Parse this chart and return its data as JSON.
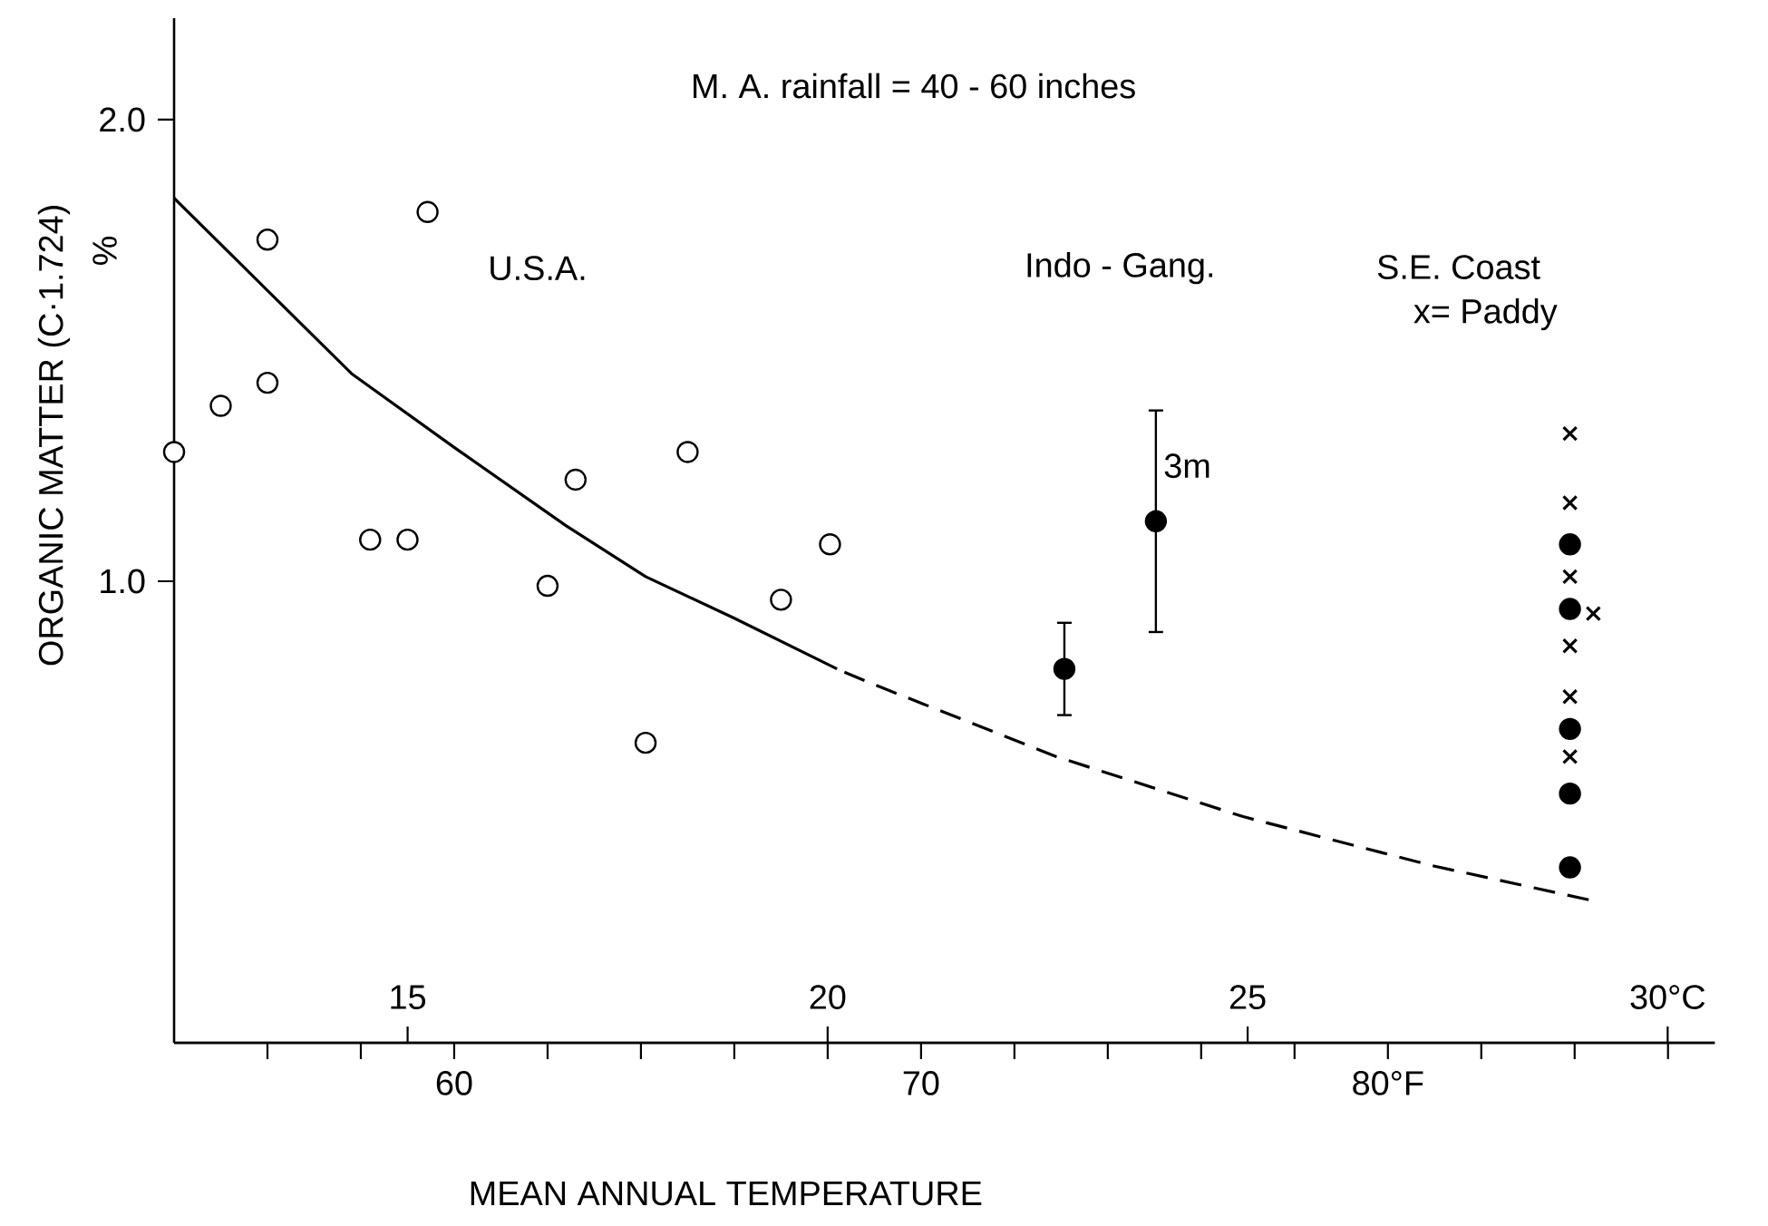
{
  "chart_data": {
    "type": "scatter",
    "xlabel": "MEAN ANNUAL TEMPERATURE",
    "ylabel": "ORGANIC MATTER (C·1.724)",
    "annotations": [
      "M. A. rainfall = 40 - 60 inches",
      "U.S.A.",
      "Indo - Gang.",
      "S.E. Coast",
      "x= Paddy",
      "%",
      {
        "text": "3m",
        "x": 75.03,
        "y": 1.25
      }
    ],
    "xlim": [
      54,
      87
    ],
    "xticks": [
      {
        "value": 56,
        "label": null
      },
      {
        "value": 58,
        "label": null
      },
      60,
      {
        "value": 62,
        "label": null
      },
      {
        "value": 64,
        "label": null
      },
      {
        "value": 66,
        "label": null
      },
      {
        "value": 68,
        "label": null
      },
      70,
      {
        "value": 72,
        "label": null
      },
      {
        "value": 74,
        "label": null
      },
      {
        "value": 76,
        "label": null
      },
      {
        "value": 78,
        "label": null
      },
      {
        "value": 80,
        "label": "80°F"
      },
      {
        "value": 82,
        "label": null
      },
      {
        "value": 84,
        "label": null
      },
      {
        "value": 86,
        "label": null
      }
    ],
    "x2lim": [
      12.22,
      30.56
    ],
    "x2ticks": [
      15,
      20,
      25,
      {
        "value": 30,
        "label": "30°C"
      }
    ],
    "ylim": [
      0,
      2.22
    ],
    "yticks": [
      {
        "value": 1,
        "label": "1.0"
      },
      {
        "value": 2,
        "label": "2.0"
      }
    ],
    "grid": false,
    "series": [
      {
        "marker": "circle",
        "color": "#000000",
        "x": [
          54.0,
          55.0,
          56.0,
          56.0,
          59.43,
          58.2,
          59.0,
          62.0,
          62.6,
          64.1,
          65.0,
          67.0,
          68.05
        ],
        "values": [
          1.28,
          1.38,
          1.74,
          1.43,
          1.8,
          1.09,
          1.09,
          0.99,
          1.22,
          0.65,
          1.28,
          0.96,
          1.08
        ]
      },
      {
        "marker": "circle",
        "color": "#000000",
        "x": [
          73.07,
          75.03
        ],
        "values": [
          0.81,
          1.13
        ],
        "errors": [
          [
            0.71,
            0.91
          ],
          [
            0.89,
            1.37
          ]
        ]
      },
      {
        "marker": "circle",
        "color": "#000000",
        "x": [
          83.9,
          83.9,
          83.9,
          83.9,
          83.9
        ],
        "values": [
          1.08,
          0.94,
          0.68,
          0.54,
          0.38
        ]
      },
      {
        "marker": "cross",
        "color": "#000000",
        "x": [
          83.9,
          83.9,
          83.9,
          84.4,
          83.9,
          83.9,
          83.9
        ],
        "values": [
          1.32,
          1.17,
          1.01,
          0.93,
          0.86,
          0.75,
          0.62
        ]
      },
      {
        "type": "line",
        "marker": "none",
        "line_style": "solid",
        "color": "#000000",
        "x": [
          54,
          56,
          57.8,
          60,
          62.4,
          64.1,
          66,
          68.2
        ],
        "values": [
          1.83,
          1.63,
          1.45,
          1.29,
          1.12,
          1.01,
          0.92,
          0.81
        ]
      },
      {
        "type": "line",
        "marker": "none",
        "line_style": "dashed",
        "color": "#000000",
        "x": [
          68.2,
          68.9,
          72.9,
          76.9,
          80.9,
          84.3
        ],
        "values": [
          0.81,
          0.78,
          0.62,
          0.49,
          0.385,
          0.31
        ]
      }
    ]
  }
}
